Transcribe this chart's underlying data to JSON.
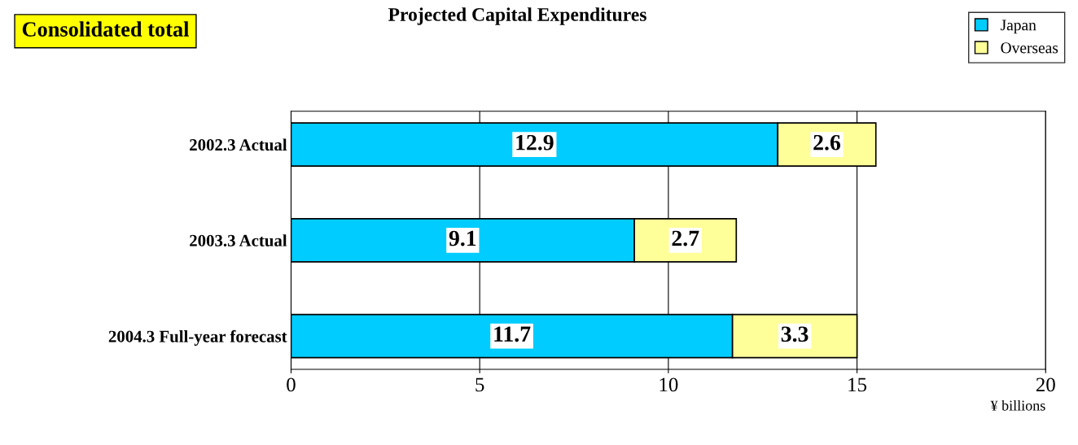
{
  "chart_data": {
    "type": "bar",
    "orientation": "horizontal",
    "stacked": true,
    "title": "Projected Capital Expenditures",
    "xlabel": "¥ billions",
    "annotations": [
      "Consolidated total"
    ],
    "categories": [
      "2002.3 Actual",
      "2003.3 Actual",
      "2004.3 Full-year forecast"
    ],
    "series": [
      {
        "name": "Japan",
        "color": "#00ccff",
        "values": [
          12.9,
          9.1,
          11.7
        ]
      },
      {
        "name": "Overseas",
        "color": "#ffff99",
        "values": [
          2.6,
          2.7,
          3.3
        ]
      }
    ],
    "xlim": [
      0,
      20
    ],
    "xticks": [
      0,
      5,
      10,
      15,
      20
    ],
    "grid": "x",
    "legend": "top right",
    "data_labels": true
  }
}
